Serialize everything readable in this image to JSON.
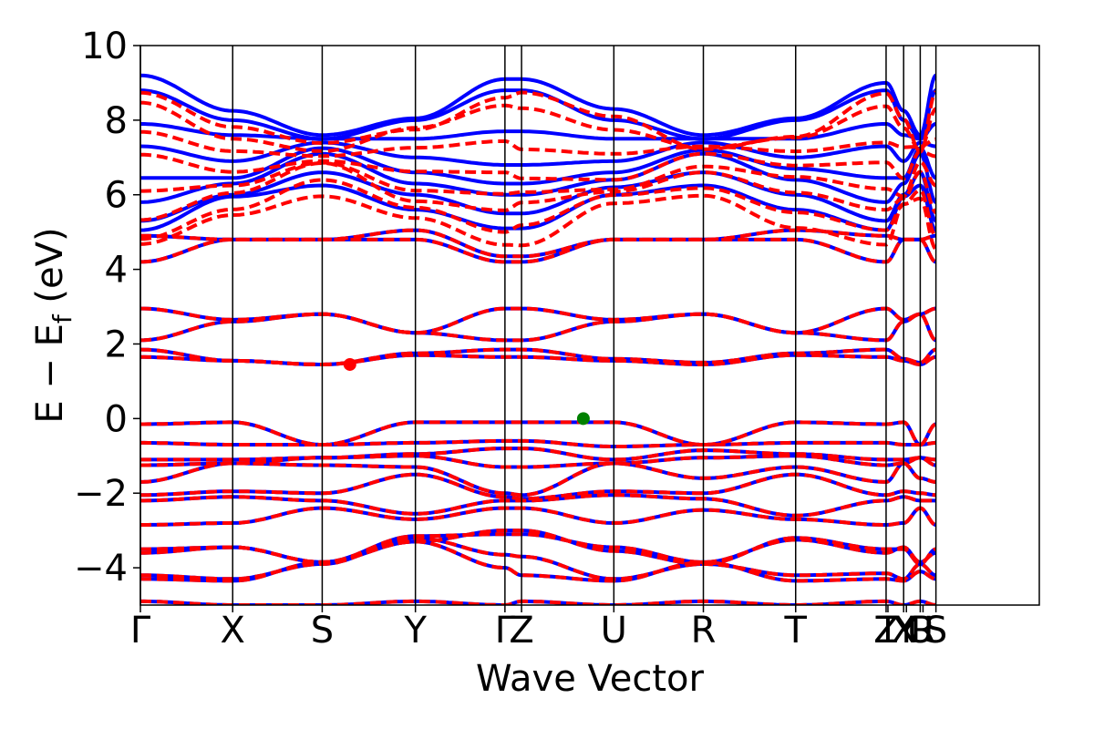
{
  "chart_data": {
    "type": "line",
    "title": "",
    "xlabel": "Wave Vector",
    "ylabel": "E − E_f (eV)",
    "ylabel_main": "E − E",
    "ylabel_sub": "f",
    "ylabel_unit": " (eV)",
    "ylim": [
      -5,
      10
    ],
    "yticks": [
      {
        "value": 10,
        "label": "10"
      },
      {
        "value": 8,
        "label": "8"
      },
      {
        "value": 6,
        "label": "6"
      },
      {
        "value": 4,
        "label": "4"
      },
      {
        "value": 2,
        "label": "2"
      },
      {
        "value": 0,
        "label": "0"
      },
      {
        "value": -2,
        "label": "−2"
      },
      {
        "value": -4,
        "label": "−4"
      }
    ],
    "xlim": [
      0,
      9.74
    ],
    "kpoints": [
      {
        "label": "Γ",
        "x": 0.0
      },
      {
        "label": "X",
        "x": 1.0
      },
      {
        "label": "S",
        "x": 1.97
      },
      {
        "label": "Y",
        "x": 2.98
      },
      {
        "label": "Γ",
        "x": 3.95
      },
      {
        "label": "Z",
        "x": 4.13
      },
      {
        "label": "U",
        "x": 5.13
      },
      {
        "label": "R",
        "x": 6.1
      },
      {
        "label": "T",
        "x": 7.1
      },
      {
        "label": "Z",
        "x": 8.08
      },
      {
        "label": "T",
        "x": 8.1
      },
      {
        "label": "X",
        "x": 8.27
      },
      {
        "label": "Y",
        "x": 8.3
      },
      {
        "label": "U",
        "x": 8.45
      },
      {
        "label": "R",
        "x": 8.48
      },
      {
        "label": "S",
        "x": 8.62
      }
    ],
    "vlines": [
      0.0,
      1.0,
      1.97,
      2.98,
      3.95,
      4.13,
      5.13,
      6.1,
      7.1,
      8.08,
      8.27,
      8.45,
      8.62
    ],
    "series": [
      {
        "style": "solid",
        "color": "#0000ff"
      },
      {
        "style": "dashed",
        "color": "#ff0000"
      }
    ],
    "bands": [
      {
        "nodes": [
          -4.9,
          -5.0,
          -5.0,
          -4.9,
          -5.0,
          -4.9,
          -5.0,
          -4.9,
          -5.0,
          -4.9,
          -5.0,
          -4.9,
          -5.0
        ],
        "rel": "c"
      },
      {
        "nodes": [
          -4.3,
          -4.35,
          -3.85,
          -3.3,
          -4.0,
          -4.2,
          -4.35,
          -3.85,
          -4.35,
          -4.3,
          -4.35,
          -4.1,
          -4.3
        ],
        "rel": "c"
      },
      {
        "nodes": [
          -4.2,
          -4.3,
          -3.9,
          -3.2,
          -3.65,
          -3.7,
          -4.3,
          -3.9,
          -4.2,
          -4.15,
          -4.3,
          -3.9,
          -4.2
        ],
        "rel": "c"
      },
      {
        "nodes": [
          -3.6,
          -3.45,
          -3.85,
          -3.15,
          -3.1,
          -3.1,
          -3.45,
          -3.85,
          -3.25,
          -3.6,
          -3.45,
          -3.85,
          -3.6
        ],
        "rel": "c"
      },
      {
        "nodes": [
          -3.5,
          -3.45,
          -3.85,
          -3.3,
          -3.0,
          -3.0,
          -3.55,
          -3.9,
          -3.2,
          -3.5,
          -3.5,
          -3.9,
          -3.5
        ],
        "rel": "c"
      },
      {
        "nodes": [
          -2.85,
          -2.8,
          -2.4,
          -2.7,
          -2.4,
          -2.4,
          -2.8,
          -2.45,
          -2.7,
          -2.85,
          -2.8,
          -2.4,
          -2.85
        ],
        "rel": "c"
      },
      {
        "nodes": [
          -2.2,
          -2.1,
          -2.2,
          -2.55,
          -2.2,
          -2.2,
          -2.05,
          -2.15,
          -2.6,
          -2.2,
          -2.1,
          -2.2,
          -2.2
        ],
        "rel": "c"
      },
      {
        "nodes": [
          -2.05,
          -1.95,
          -2.0,
          -1.5,
          -2.1,
          -2.15,
          -1.95,
          -2.0,
          -1.5,
          -2.05,
          -1.95,
          -2.0,
          -2.05
        ],
        "rel": "c"
      },
      {
        "nodes": [
          -1.7,
          -1.2,
          -1.25,
          -1.3,
          -2.0,
          -2.05,
          -1.2,
          -1.6,
          -1.3,
          -1.7,
          -1.2,
          -1.6,
          -1.7
        ],
        "rel": "c"
      },
      {
        "nodes": [
          -1.25,
          -1.2,
          -1.05,
          -1.0,
          -1.3,
          -1.3,
          -1.2,
          -1.05,
          -1.0,
          -1.25,
          -1.2,
          -1.05,
          -1.25
        ],
        "rel": "c"
      },
      {
        "nodes": [
          -1.1,
          -1.1,
          -1.05,
          -0.95,
          -0.8,
          -0.8,
          -1.1,
          -0.85,
          -0.95,
          -1.1,
          -1.1,
          -1.05,
          -1.1
        ],
        "rel": "c"
      },
      {
        "nodes": [
          -0.65,
          -0.7,
          -0.7,
          -0.65,
          -0.6,
          -0.6,
          -0.75,
          -0.7,
          -0.65,
          -0.65,
          -0.7,
          -0.7,
          -0.65
        ],
        "rel": "c"
      },
      {
        "nodes": [
          -0.15,
          -0.1,
          -0.7,
          -0.1,
          -0.1,
          -0.1,
          -0.1,
          -0.7,
          -0.1,
          -0.15,
          -0.1,
          -0.7,
          -0.15
        ],
        "rel": "c"
      },
      {
        "nodes": [
          1.65,
          1.55,
          1.45,
          1.7,
          1.65,
          1.65,
          1.55,
          1.45,
          1.7,
          1.65,
          1.55,
          1.45,
          1.65
        ],
        "rel": "c"
      },
      {
        "nodes": [
          1.85,
          1.55,
          1.45,
          1.75,
          1.85,
          1.85,
          1.6,
          1.5,
          1.75,
          1.85,
          1.6,
          1.5,
          1.85
        ],
        "rel": "c"
      },
      {
        "nodes": [
          2.1,
          2.6,
          2.8,
          2.3,
          2.1,
          2.1,
          2.6,
          2.8,
          2.3,
          2.1,
          2.6,
          2.8,
          2.1
        ],
        "rel": "c"
      },
      {
        "nodes": [
          2.95,
          2.65,
          2.8,
          2.3,
          2.95,
          2.95,
          2.65,
          2.8,
          2.3,
          2.95,
          2.65,
          2.8,
          2.95
        ],
        "rel": "c"
      },
      {
        "nodes": [
          4.2,
          4.8,
          4.8,
          4.8,
          4.2,
          4.2,
          4.8,
          4.8,
          4.8,
          4.2,
          4.8,
          4.8,
          4.2
        ],
        "rel": "c"
      },
      {
        "nodes": [
          4.9,
          4.8,
          4.8,
          5.05,
          4.35,
          4.35,
          4.8,
          4.8,
          5.05,
          4.9,
          4.8,
          4.8,
          4.9
        ],
        "rel": "c"
      },
      {
        "nodes": [
          5.05,
          5.95,
          6.25,
          5.6,
          5.1,
          5.1,
          6.0,
          6.25,
          5.6,
          5.05,
          5.95,
          6.25,
          5.05
        ],
        "rel": "u"
      },
      {
        "nodes": [
          5.3,
          6.0,
          6.6,
          6.0,
          5.5,
          5.5,
          6.2,
          6.6,
          6.0,
          5.3,
          6.0,
          6.6,
          5.3
        ],
        "rel": "u"
      },
      {
        "nodes": [
          5.8,
          6.3,
          7.1,
          6.3,
          6.0,
          6.0,
          6.4,
          7.1,
          6.4,
          5.8,
          6.3,
          7.1,
          5.8
        ],
        "rel": "u"
      },
      {
        "nodes": [
          6.45,
          6.45,
          7.25,
          6.6,
          6.3,
          6.3,
          6.6,
          7.2,
          6.7,
          6.45,
          6.45,
          7.25,
          6.45
        ],
        "rel": "u"
      },
      {
        "nodes": [
          7.3,
          6.9,
          7.4,
          7.0,
          6.8,
          6.8,
          6.9,
          7.4,
          7.0,
          7.3,
          6.9,
          7.4,
          7.3
        ],
        "rel": "u"
      },
      {
        "nodes": [
          7.9,
          7.6,
          7.5,
          7.5,
          7.7,
          7.7,
          7.5,
          7.5,
          7.5,
          7.9,
          7.6,
          7.5,
          7.9
        ],
        "rel": "u"
      },
      {
        "nodes": [
          8.8,
          8.0,
          7.5,
          8.0,
          8.8,
          8.8,
          8.0,
          7.5,
          8.0,
          8.8,
          8.0,
          7.5,
          8.8
        ],
        "rel": "u"
      },
      {
        "nodes": [
          9.2,
          8.25,
          7.6,
          8.05,
          9.1,
          9.1,
          8.3,
          7.6,
          8.05,
          9.0,
          8.25,
          7.6,
          9.2
        ],
        "rel": "u"
      }
    ],
    "markers": [
      {
        "name": "conduction-band-minimum",
        "x": 2.27,
        "y": 1.45,
        "color": "#ff0000"
      },
      {
        "name": "valence-band-maximum",
        "x": 4.8,
        "y": 0.0,
        "color": "#008000"
      }
    ]
  }
}
